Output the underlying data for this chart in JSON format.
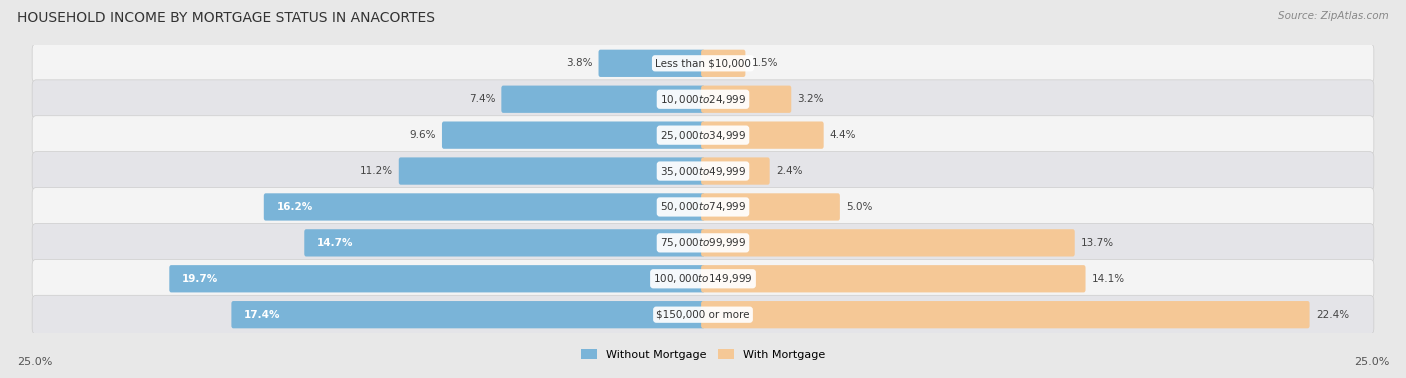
{
  "title": "HOUSEHOLD INCOME BY MORTGAGE STATUS IN ANACORTES",
  "source": "Source: ZipAtlas.com",
  "categories": [
    "Less than $10,000",
    "$10,000 to $24,999",
    "$25,000 to $34,999",
    "$35,000 to $49,999",
    "$50,000 to $74,999",
    "$75,000 to $99,999",
    "$100,000 to $149,999",
    "$150,000 or more"
  ],
  "without_mortgage": [
    3.8,
    7.4,
    9.6,
    11.2,
    16.2,
    14.7,
    19.7,
    17.4
  ],
  "with_mortgage": [
    1.5,
    3.2,
    4.4,
    2.4,
    5.0,
    13.7,
    14.1,
    22.4
  ],
  "color_without": "#7ab4d8",
  "color_with": "#f5c896",
  "max_val": 25.0,
  "bg_color": "#e8e8e8",
  "row_color_even": "#f4f4f4",
  "row_color_odd": "#e4e4e8",
  "title_fontsize": 10,
  "source_fontsize": 7.5,
  "cat_fontsize": 7.5,
  "pct_fontsize": 7.5,
  "axis_fontsize": 8,
  "legend_fontsize": 8,
  "wo_white_threshold": 12.0,
  "wm_white_threshold": 99.0
}
